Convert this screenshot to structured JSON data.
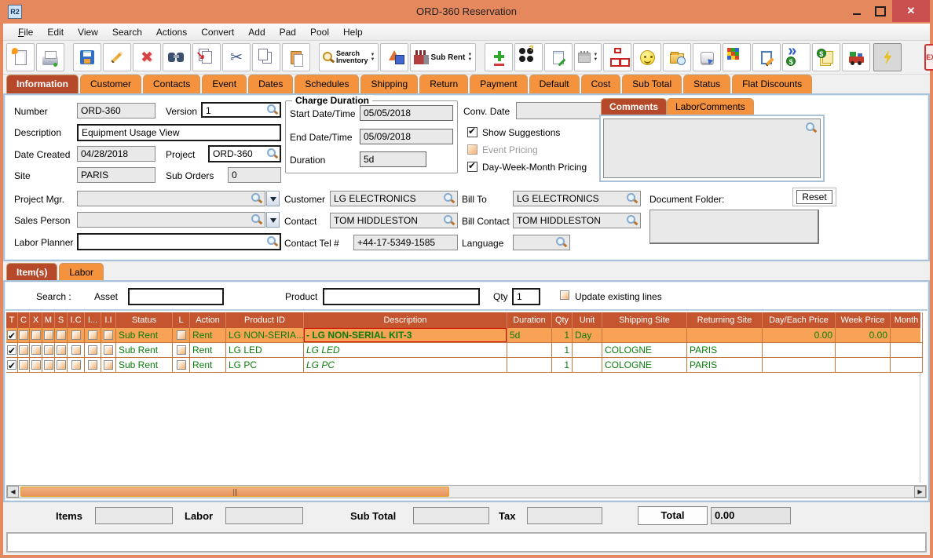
{
  "window": {
    "title": "ORD-360 Reservation",
    "app_icon_text": "R2",
    "controls": [
      "minimize",
      "maximize",
      "close"
    ]
  },
  "menu": {
    "items": [
      "File",
      "Edit",
      "View",
      "Search",
      "Actions",
      "Convert",
      "Add",
      "Pad",
      "Pool",
      "Help"
    ],
    "underlined": "File"
  },
  "toolbar": {
    "icons": [
      "new-document",
      "print",
      "save",
      "edit-pencil",
      "delete",
      "find-binoculars",
      "paste-special",
      "cut",
      "copy",
      "paste",
      "search-inventory",
      "shapes",
      "sub-rent",
      "add-line",
      "help-balls",
      "notes",
      "calendar",
      "org-chart",
      "smiley",
      "folder-clock",
      "shortcut-key",
      "cubes",
      "edit-document",
      "convert-currency",
      "billing",
      "truck-shipping",
      "lightning",
      "exit"
    ],
    "search_inventory_line1": "Search",
    "search_inventory_line2": "Inventory",
    "sub_rent_label": "Sub Rent",
    "exit_label": "EXIT"
  },
  "tabs": {
    "active_index": 0,
    "items": [
      "Information",
      "Customer",
      "Contacts",
      "Event",
      "Dates",
      "Schedules",
      "Shipping",
      "Return",
      "Payment",
      "Default",
      "Cost",
      "Sub Total",
      "Status",
      "Flat Discounts"
    ]
  },
  "form": {
    "number": {
      "label": "Number",
      "value": "ORD-360"
    },
    "version": {
      "label": "Version",
      "value": "1"
    },
    "description": {
      "label": "Description",
      "value": "Equipment Usage View"
    },
    "date_created": {
      "label": "Date Created",
      "value": "04/28/2018"
    },
    "project": {
      "label": "Project",
      "value": "ORD-360"
    },
    "site": {
      "label": "Site",
      "value": "PARIS"
    },
    "sub_orders": {
      "label": "Sub Orders",
      "value": "0"
    },
    "project_mgr": {
      "label": "Project Mgr.",
      "value": ""
    },
    "sales_person": {
      "label": "Sales Person",
      "value": ""
    },
    "labor_planner": {
      "label": "Labor Planner",
      "value": ""
    }
  },
  "charge_duration": {
    "title": "Charge Duration",
    "start": {
      "label": "Start Date/Time",
      "value": "05/05/2018"
    },
    "end": {
      "label": "End Date/Time",
      "value": "05/09/2018"
    },
    "duration": {
      "label": "Duration",
      "value": "5d"
    }
  },
  "conv_date": {
    "label": "Conv. Date",
    "value": ""
  },
  "options": {
    "show_suggestions": {
      "label": "Show Suggestions",
      "checked": true
    },
    "event_pricing": {
      "label": "Event Pricing",
      "checked": false,
      "disabled": true
    },
    "day_week_month": {
      "label": "Day-Week-Month Pricing",
      "checked": true
    }
  },
  "contacts": {
    "customer": {
      "label": "Customer",
      "value": "LG ELECTRONICS"
    },
    "bill_to": {
      "label": "Bill To",
      "value": "LG ELECTRONICS"
    },
    "contact": {
      "label": "Contact",
      "value": "TOM HIDDLESTON"
    },
    "bill_contact": {
      "label": "Bill Contact",
      "value": "TOM HIDDLESTON"
    },
    "contact_tel": {
      "label": "Contact Tel #",
      "value": "+44-17-5349-1585"
    },
    "language": {
      "label": "Language",
      "value": ""
    }
  },
  "comments": {
    "tabs": [
      {
        "label": "Comments",
        "active": true
      },
      {
        "label": "LaborComments",
        "active": false
      }
    ],
    "text": ""
  },
  "document_folder": {
    "label": "Document Folder:",
    "reset_label": "Reset",
    "path": ""
  },
  "items_section": {
    "tabs": [
      {
        "label": "Item(s)",
        "active": true
      },
      {
        "label": "Labor",
        "active": false
      }
    ],
    "search_label": "Search :",
    "asset_label": "Asset",
    "asset_value": "",
    "product_label": "Product",
    "product_value": "",
    "qty_label": "Qty",
    "qty_value": "1",
    "update_label": "Update existing lines",
    "update_checked": false
  },
  "table": {
    "columns": [
      "T",
      "C",
      "X",
      "M",
      "S",
      "I.C",
      "I...",
      "I.I",
      "Status",
      "L",
      "Action",
      "Product ID",
      "Description",
      "Duration",
      "Qty",
      "Unit",
      "Shipping Site",
      "Returning Site",
      "Day/Each Price",
      "Week Price",
      "Month"
    ],
    "rows": [
      {
        "selected": true,
        "checks": [
          true,
          false,
          false,
          false,
          false,
          false,
          false,
          false
        ],
        "status": "Sub Rent",
        "l_checked": false,
        "action": "Rent",
        "product_id": "LG NON-SERIA...",
        "description": "-  LG NON-SERIAL KIT-3",
        "desc_style": "bold",
        "duration": "5d",
        "qty": "1",
        "unit": "Day",
        "shipping_site": "",
        "returning_site": "",
        "day_each_price": "0.00",
        "week_price": "0.00",
        "month_price": ""
      },
      {
        "selected": false,
        "checks": [
          true,
          false,
          false,
          false,
          false,
          false,
          false,
          false
        ],
        "status": "Sub Rent",
        "l_checked": false,
        "action": "Rent",
        "product_id": "LG LED",
        "description": "LG LED",
        "desc_style": "italic",
        "duration": "",
        "qty": "1",
        "unit": "",
        "shipping_site": "COLOGNE",
        "returning_site": "PARIS",
        "day_each_price": "",
        "week_price": "",
        "month_price": ""
      },
      {
        "selected": false,
        "checks": [
          true,
          false,
          false,
          false,
          false,
          false,
          false,
          false
        ],
        "status": "Sub Rent",
        "l_checked": false,
        "action": "Rent",
        "product_id": "LG PC",
        "description": "LG PC",
        "desc_style": "italic",
        "duration": "",
        "qty": "1",
        "unit": "",
        "shipping_site": "COLOGNE",
        "returning_site": "PARIS",
        "day_each_price": "",
        "week_price": "",
        "month_price": ""
      }
    ]
  },
  "totals": {
    "items_label": "Items",
    "items_value": "",
    "labor_label": "Labor",
    "labor_value": "",
    "subtotal_label": "Sub Total",
    "subtotal_value": "",
    "tax_label": "Tax",
    "tax_value": "",
    "total_label": "Total",
    "total_value": "0.00"
  },
  "status_bar": {
    "text": ""
  }
}
